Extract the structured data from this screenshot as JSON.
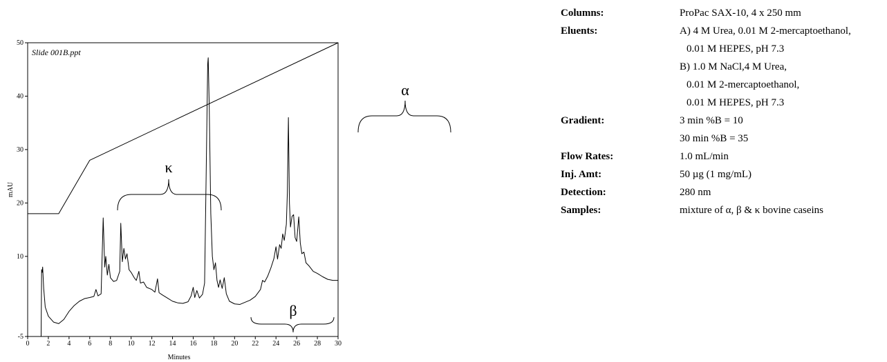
{
  "chart_data": {
    "type": "line",
    "annotations": [
      "Slide 001B.ppt",
      "κ",
      "β",
      "α"
    ],
    "xlabel": "Minutes",
    "ylabel": "mAU",
    "xlim": [
      0,
      30
    ],
    "ylim": [
      -5,
      50
    ],
    "xticks": [
      0,
      2,
      4,
      6,
      8,
      10,
      12,
      14,
      16,
      18,
      20,
      22,
      24,
      26,
      28,
      30
    ],
    "yticks": [
      -5,
      10,
      20,
      30,
      40,
      50
    ],
    "series": [
      {
        "color": "#000000",
        "x": [
          0,
          1.3,
          1.35,
          1.4,
          1.45,
          1.55,
          1.7,
          2.0,
          2.5,
          3.0,
          3.5,
          4.0,
          4.5,
          5.0,
          5.5,
          6.0,
          6.4,
          6.6,
          6.8,
          7.1,
          7.3,
          7.45,
          7.55,
          7.7,
          7.85,
          8.0,
          8.3,
          8.6,
          8.9,
          9.0,
          9.15,
          9.3,
          9.45,
          9.6,
          9.8,
          10.0,
          10.3,
          10.5,
          10.75,
          10.9,
          11.2,
          11.5,
          12.0,
          12.3,
          12.55,
          12.7,
          13.0,
          13.5,
          14.0,
          14.5,
          15.0,
          15.5,
          15.8,
          16.0,
          16.15,
          16.35,
          16.6,
          16.9,
          17.1,
          17.25,
          17.4,
          17.45,
          17.55,
          17.7,
          17.85,
          18.0,
          18.15,
          18.3,
          18.45,
          18.6,
          18.8,
          19.0,
          19.2,
          19.5,
          20.0,
          20.5,
          21.0,
          21.5,
          22.0,
          22.5,
          22.7,
          22.9,
          23.2,
          23.5,
          23.8,
          24.0,
          24.15,
          24.35,
          24.5,
          24.65,
          24.8,
          25.0,
          25.1,
          25.2,
          25.3,
          25.4,
          25.55,
          25.7,
          25.85,
          26.0,
          26.2,
          26.35,
          26.5,
          26.7,
          26.9,
          27.2,
          27.6,
          28.0,
          28.5,
          29.0,
          29.5,
          30.0
        ],
        "values": [
          -5,
          -5,
          7.5,
          7.0,
          8.0,
          4,
          0.5,
          -1.2,
          -2.3,
          -2.6,
          -1.8,
          -0.3,
          0.8,
          1.6,
          2.1,
          2.3,
          2.5,
          3.8,
          2.6,
          3.0,
          17.2,
          8,
          10,
          6.5,
          8.5,
          6,
          5.3,
          5.5,
          7.2,
          16.2,
          9,
          11.5,
          9.5,
          10.5,
          7.5,
          7.0,
          6.0,
          5.5,
          7.2,
          5.0,
          5.2,
          4.2,
          3.8,
          3.3,
          5.8,
          3.2,
          2.8,
          2.2,
          1.6,
          1.3,
          1.2,
          1.5,
          2.6,
          4.2,
          2.3,
          3.6,
          2.2,
          2.9,
          5,
          25,
          46,
          47.2,
          38,
          18,
          10,
          7.5,
          8.8,
          5.5,
          4.2,
          5.6,
          4.0,
          6.0,
          3.0,
          1.6,
          1.1,
          1.0,
          1.4,
          1.8,
          2.5,
          3.8,
          5.5,
          5.2,
          6.3,
          7.8,
          9.6,
          11.8,
          9.5,
          12.2,
          11.5,
          14.2,
          13.0,
          16.0,
          22,
          36.0,
          20,
          15.5,
          17.5,
          17.8,
          13.5,
          12.8,
          17.4,
          12.5,
          10.5,
          10.8,
          8.8,
          8.2,
          7.2,
          6.8,
          6.2,
          5.7,
          5.5,
          5.5
        ]
      },
      {
        "color": "#000000",
        "x": [
          0,
          3,
          6,
          30
        ],
        "values": [
          18,
          18,
          28,
          50
        ]
      }
    ]
  },
  "method": {
    "rows": [
      {
        "label": "Columns:",
        "lines": [
          "ProPac SAX-10, 4 x 250 mm"
        ]
      },
      {
        "label": "Eluents:",
        "lines": [
          "A)  4 M Urea, 0.01 M 2-mercaptoethanol,",
          "0.01 M HEPES, pH 7.3",
          "B)  1.0 M NaCl,4 M Urea,",
          "0.01 M 2-mercaptoethanol,",
          "0.01 M HEPES, pH 7.3"
        ]
      },
      {
        "label": "Gradient:",
        "lines": [
          "3 min %B = 10",
          "30 min %B = 35"
        ]
      },
      {
        "label": "Flow Rates:",
        "lines": [
          "1.0 mL/min"
        ]
      },
      {
        "label": "Inj. Amt:",
        "lines": [
          "50 µg (1 mg/mL)"
        ]
      },
      {
        "label": "Detection:",
        "lines": [
          "280 nm"
        ]
      },
      {
        "label": "Samples:",
        "lines": [
          "mixture of α, β & κ bovine caseins"
        ]
      }
    ]
  }
}
